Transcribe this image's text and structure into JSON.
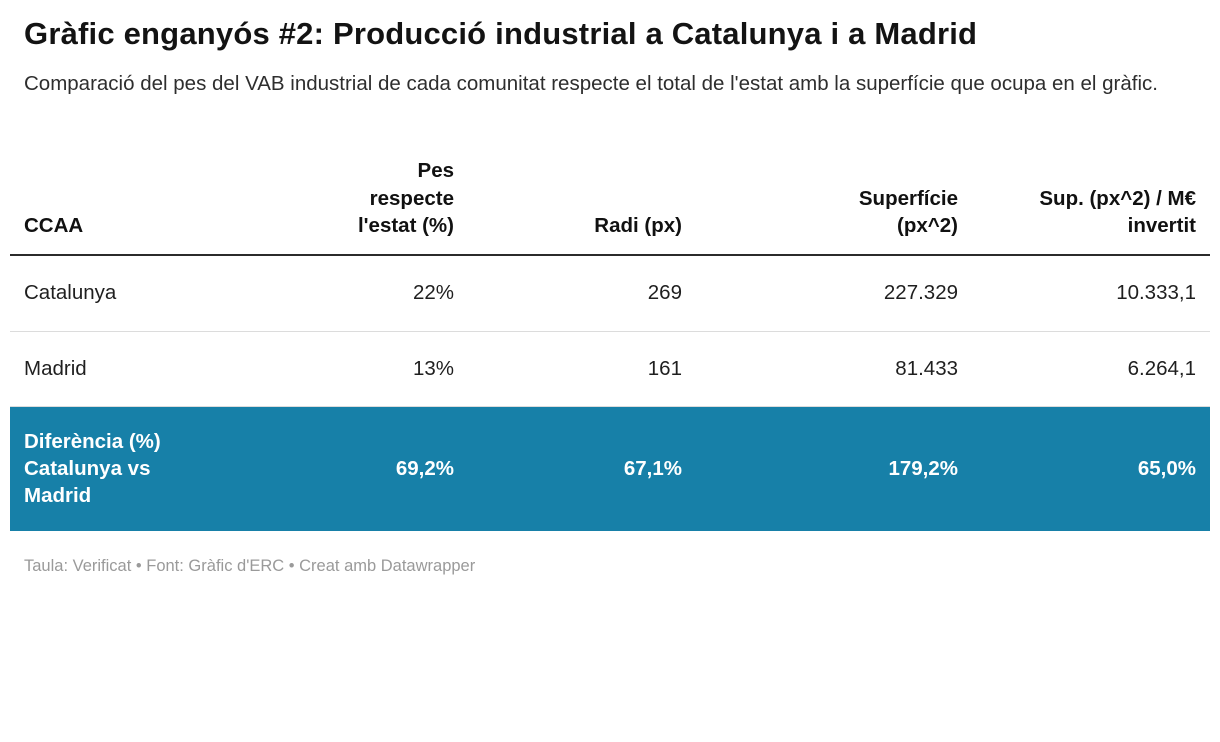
{
  "title": "Gràfic enganyós #2: Producció industrial a Catalunya i a Madrid",
  "subtitle": "Comparació del pes del VAB industrial de cada comunitat respecte el total de l'estat amb la superfície que ocupa en el gràfic.",
  "footer": "Taula: Verificat • Font: Gràfic d'ERC • Creat amb Datawrapper",
  "colors": {
    "highlight_row_background": "#1780a8",
    "highlight_row_text": "#ffffff",
    "header_rule": "#2b2b2b",
    "row_divider": "#dcdcdc",
    "footer_text": "#9a9a9a"
  },
  "chart_data": {
    "type": "table",
    "columns": [
      "CCAA",
      "Pes respecte l'estat (%)",
      "Radi (px)",
      "Superfície (px^2)",
      "Sup. (px^2) / M€ invertit"
    ],
    "rows": [
      {
        "label": "Catalunya",
        "values": [
          "22%",
          "269",
          "227.329",
          "10.333,1"
        ],
        "highlight": false
      },
      {
        "label": "Madrid",
        "values": [
          "13%",
          "161",
          "81.433",
          "6.264,1"
        ],
        "highlight": false
      },
      {
        "label": "Diferència (%) Catalunya vs Madrid",
        "values": [
          "69,2%",
          "67,1%",
          "179,2%",
          "65,0%"
        ],
        "highlight": true
      }
    ]
  }
}
